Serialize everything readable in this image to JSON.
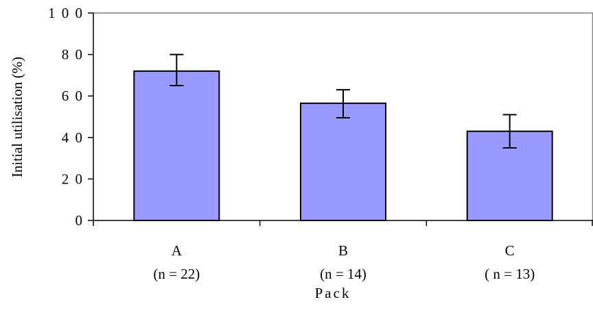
{
  "chart_data": {
    "type": "bar",
    "title": "",
    "xlabel": "Pack",
    "ylabel": "Initial utilisation (%)",
    "ylim": [
      0,
      100
    ],
    "yticks": [
      0,
      20,
      40,
      60,
      80,
      100
    ],
    "y_tick_labels": [
      "0",
      "2 0",
      "4 0",
      "6 0",
      "8 0",
      "1 0 0"
    ],
    "grid": false,
    "legend": "none",
    "categories": [
      "A",
      "B",
      "C"
    ],
    "category_sublabels": [
      "(n = 22)",
      "(n = 14)",
      "( n = 13)"
    ],
    "values": [
      72,
      56.5,
      43
    ],
    "error_bars": [
      {
        "low": 65,
        "high": 80
      },
      {
        "low": 49.5,
        "high": 63
      },
      {
        "low": 35,
        "high": 51
      }
    ],
    "colors": {
      "bar_fill": "#9999ff",
      "bar_stroke": "#000000",
      "axis": "#000000",
      "frame": "#808080"
    }
  }
}
